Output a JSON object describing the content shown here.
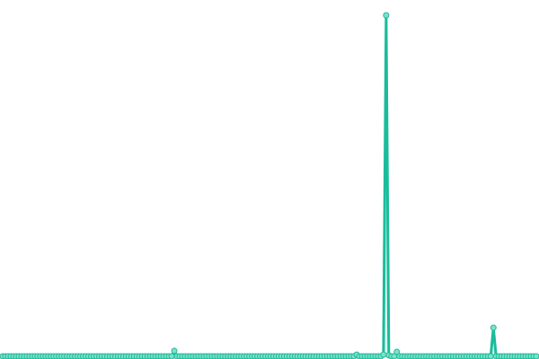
{
  "chart_data": {
    "type": "line",
    "color": "#1abc9c",
    "values": [
      0,
      0,
      0,
      0,
      0,
      0,
      0,
      0,
      0,
      0,
      0,
      0,
      0,
      0,
      0,
      0,
      0,
      0,
      0,
      0,
      0,
      0,
      0,
      0,
      0,
      0,
      0,
      0,
      0,
      0,
      0,
      0,
      0,
      0,
      0,
      0,
      0,
      0,
      0,
      0,
      0,
      0,
      0,
      0,
      0,
      0,
      0,
      0,
      0,
      0,
      0,
      0,
      0,
      0,
      0,
      0,
      0,
      0,
      0,
      0,
      0,
      0,
      0,
      0,
      1.6,
      0,
      0,
      0,
      0,
      0,
      0,
      0,
      0,
      0,
      0,
      0,
      0,
      0,
      0,
      0,
      0,
      0,
      0,
      0,
      0,
      0,
      0,
      0,
      0,
      0,
      0,
      0,
      0,
      0,
      0,
      0,
      0,
      0,
      0,
      0,
      0,
      0,
      0,
      0,
      0,
      0,
      0,
      0,
      0,
      0,
      0,
      0,
      0,
      0,
      0,
      0,
      0,
      0,
      0,
      0,
      0,
      0,
      0,
      0,
      0,
      0,
      0,
      0,
      0,
      0,
      0,
      0,
      0.5,
      0,
      0,
      0,
      0,
      0,
      0,
      0,
      0,
      0,
      0.5,
      100,
      0.3,
      0,
      0,
      1.3,
      0,
      0,
      0,
      0,
      0,
      0,
      0,
      0,
      0,
      0,
      0,
      0,
      0,
      0,
      0,
      0,
      0,
      0,
      0,
      0,
      0,
      0,
      0,
      0,
      0,
      0,
      0,
      0,
      0,
      0,
      0,
      0,
      0,
      0,
      0,
      8.4,
      0,
      0,
      0,
      0,
      0,
      0,
      0,
      0,
      0,
      0,
      0,
      0,
      0,
      0,
      0,
      0
    ]
  }
}
